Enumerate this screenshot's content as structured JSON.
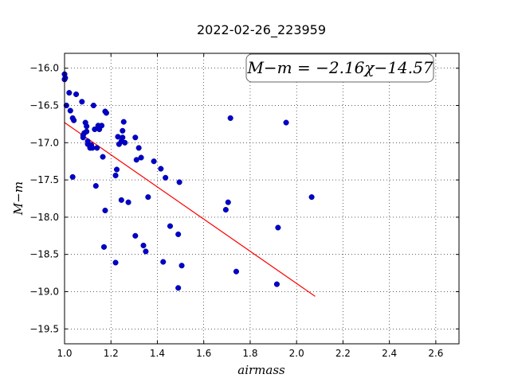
{
  "chart_data": {
    "type": "scatter",
    "title": "2022-02-26_223959",
    "xlabel": "airmass",
    "ylabel": "M−m",
    "xlim": [
      1.0,
      2.7
    ],
    "ylim": [
      -15.8,
      -19.7
    ],
    "y_inverted": true,
    "xticks": [
      1.0,
      1.2,
      1.4,
      1.6,
      1.8,
      2.0,
      2.2,
      2.4,
      2.6
    ],
    "xtick_labels": [
      "1.0",
      "1.2",
      "1.4",
      "1.6",
      "1.8",
      "2.0",
      "2.2",
      "2.4",
      "2.6"
    ],
    "yticks": [
      -16.0,
      -16.5,
      -17.0,
      -17.5,
      -18.0,
      -18.5,
      -19.0,
      -19.5
    ],
    "ytick_labels": [
      "−16.0",
      "−16.5",
      "−17.0",
      "−17.5",
      "−18.0",
      "−18.5",
      "−19.0",
      "−19.5"
    ],
    "grid": true,
    "annotation": "M−m = −2.16χ−14.57",
    "colors": {
      "points": "#0000cc",
      "fit": "#ff0000"
    },
    "fit_line": {
      "slope": -2.16,
      "intercept": -14.57,
      "x_range": [
        1.0,
        2.08
      ]
    },
    "series": [
      {
        "x": [
          1.0,
          1.0,
          1.003,
          1.008,
          1.02,
          1.025,
          1.035,
          1.04,
          1.05,
          1.075,
          1.08,
          1.08,
          1.085,
          1.09,
          1.095,
          1.095,
          1.1,
          1.1,
          1.11,
          1.115,
          1.12,
          1.125,
          1.13,
          1.14,
          1.145,
          1.15,
          1.16,
          1.165,
          1.175,
          1.18,
          1.22,
          1.225,
          1.235,
          1.245,
          1.25,
          1.25,
          1.255,
          1.26,
          1.305,
          1.31,
          1.32,
          1.33,
          1.385,
          1.415,
          1.435,
          1.495,
          1.035,
          1.135,
          1.175,
          1.22,
          1.23,
          1.245,
          1.275,
          1.36,
          1.455,
          1.49,
          1.305,
          1.34,
          1.35,
          1.425,
          1.505,
          1.49,
          1.17,
          1.715,
          1.955,
          1.705,
          1.695,
          2.065,
          1.92,
          1.74,
          1.915
        ],
        "y": [
          -16.08,
          -16.15,
          -16.13,
          -16.5,
          -16.33,
          -16.57,
          -16.67,
          -16.7,
          -16.35,
          -16.45,
          -16.9,
          -16.93,
          -16.87,
          -16.73,
          -16.78,
          -16.85,
          -17.02,
          -16.98,
          -17.07,
          -17.03,
          -17.07,
          -16.5,
          -16.82,
          -17.07,
          -16.77,
          -16.82,
          -16.77,
          -17.19,
          -16.58,
          -16.6,
          -17.44,
          -17.36,
          -17.02,
          -16.98,
          -16.93,
          -16.84,
          -16.72,
          -17.0,
          -16.93,
          -17.23,
          -17.07,
          -17.2,
          -17.25,
          -17.35,
          -17.47,
          -17.53,
          -17.46,
          -17.58,
          -17.91,
          -18.61,
          -16.92,
          -17.77,
          -17.8,
          -17.73,
          -18.12,
          -18.23,
          -18.25,
          -18.38,
          -18.46,
          -18.6,
          -18.65,
          -18.95,
          -18.4,
          -16.67,
          -16.73,
          -17.8,
          -17.9,
          -17.73,
          -18.14,
          -18.73,
          -18.9
        ]
      }
    ]
  }
}
